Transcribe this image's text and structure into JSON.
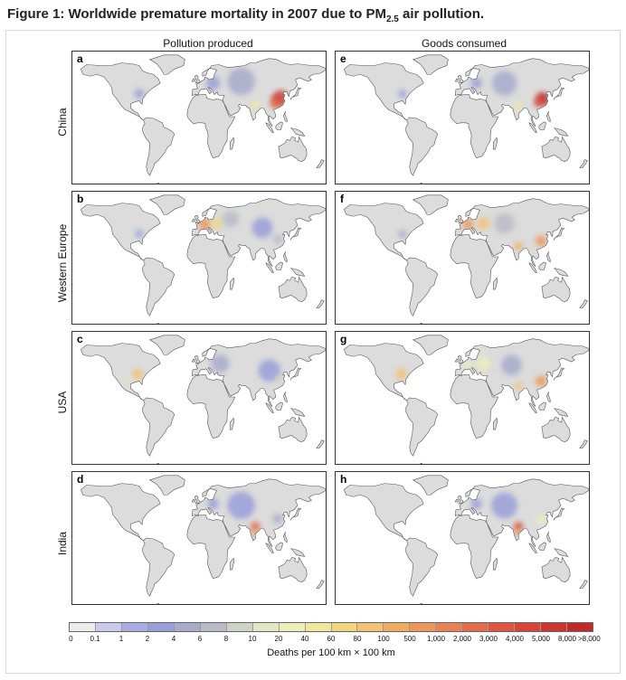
{
  "figure": {
    "title_main": "Figure 1: Worldwide premature mortality in 2007 due to PM",
    "title_sub": "2.5",
    "title_end": " air pollution."
  },
  "columns": [
    "Pollution produced",
    "Goods consumed"
  ],
  "rows": [
    "China",
    "Western Europe",
    "USA",
    "India"
  ],
  "panels": [
    {
      "letter": "a",
      "row": "China",
      "column": "Pollution produced"
    },
    {
      "letter": "b",
      "row": "Western Europe",
      "column": "Pollution produced"
    },
    {
      "letter": "c",
      "row": "USA",
      "column": "Pollution produced"
    },
    {
      "letter": "d",
      "row": "India",
      "column": "Pollution produced"
    },
    {
      "letter": "e",
      "row": "China",
      "column": "Goods consumed"
    },
    {
      "letter": "f",
      "row": "Western Europe",
      "column": "Goods consumed"
    },
    {
      "letter": "g",
      "row": "USA",
      "column": "Goods consumed"
    },
    {
      "letter": "h",
      "row": "India",
      "column": "Goods consumed"
    }
  ],
  "legend": {
    "title": "Deaths per 100 km × 100 km",
    "ticks": [
      "0",
      "0.1",
      "1",
      "2",
      "4",
      "6",
      "8",
      "10",
      "20",
      "40",
      "60",
      "80",
      "100",
      "500",
      "1,000",
      "2,000",
      "3,000",
      "4,000",
      "5,000",
      "8,000",
      ">8,000"
    ],
    "colors": [
      "#ececec",
      "#c9cbe9",
      "#a9ade3",
      "#9a9fd9",
      "#a7abcc",
      "#b9bcc6",
      "#cfd2c6",
      "#e2e6c3",
      "#eeeeba",
      "#f1e79a",
      "#f2d67e",
      "#f1c272",
      "#efad62",
      "#ec985a",
      "#e98252",
      "#e46b48",
      "#dd5640",
      "#d64538",
      "#cd3630",
      "#c02a28"
    ]
  },
  "hotspots": {
    "a": [
      {
        "lon": 114,
        "lat": 32,
        "lvl": 18,
        "r": 22
      },
      {
        "lon": 108,
        "lat": 27,
        "lvl": 15,
        "r": 14
      },
      {
        "lon": 118,
        "lat": 38,
        "lvl": 16,
        "r": 10
      },
      {
        "lon": 80,
        "lat": 25,
        "lvl": 9,
        "r": 12
      },
      {
        "lon": 60,
        "lat": 52,
        "lvl": 4,
        "r": 40
      },
      {
        "lon": 20,
        "lat": 50,
        "lvl": 3,
        "r": 20
      },
      {
        "lon": -85,
        "lat": 38,
        "lvl": 3,
        "r": 14
      }
    ],
    "b": [
      {
        "lon": 8,
        "lat": 49,
        "lvl": 13,
        "r": 18
      },
      {
        "lon": 25,
        "lat": 50,
        "lvl": 10,
        "r": 16
      },
      {
        "lon": 45,
        "lat": 55,
        "lvl": 5,
        "r": 24
      },
      {
        "lon": 90,
        "lat": 45,
        "lvl": 3,
        "r": 30
      },
      {
        "lon": 112,
        "lat": 32,
        "lvl": 5,
        "r": 14
      },
      {
        "lon": -85,
        "lat": 38,
        "lvl": 3,
        "r": 12
      }
    ],
    "c": [
      {
        "lon": -87,
        "lat": 38,
        "lvl": 11,
        "r": 16
      },
      {
        "lon": -100,
        "lat": 33,
        "lvl": 7,
        "r": 10
      },
      {
        "lon": 30,
        "lat": 50,
        "lvl": 4,
        "r": 26
      },
      {
        "lon": 100,
        "lat": 42,
        "lvl": 3,
        "r": 32
      },
      {
        "lon": 114,
        "lat": 32,
        "lvl": 6,
        "r": 12
      }
    ],
    "d": [
      {
        "lon": 80,
        "lat": 24,
        "lvl": 15,
        "r": 14
      },
      {
        "lon": 78,
        "lat": 17,
        "lvl": 13,
        "r": 10
      },
      {
        "lon": 60,
        "lat": 48,
        "lvl": 3,
        "r": 40
      },
      {
        "lon": 112,
        "lat": 33,
        "lvl": 4,
        "r": 14
      },
      {
        "lon": 20,
        "lat": 50,
        "lvl": 3,
        "r": 16
      }
    ],
    "e": [
      {
        "lon": 114,
        "lat": 32,
        "lvl": 19,
        "r": 20
      },
      {
        "lon": 108,
        "lat": 28,
        "lvl": 16,
        "r": 12
      },
      {
        "lon": 80,
        "lat": 24,
        "lvl": 9,
        "r": 12
      },
      {
        "lon": 60,
        "lat": 50,
        "lvl": 4,
        "r": 36
      },
      {
        "lon": 20,
        "lat": 50,
        "lvl": 3,
        "r": 16
      },
      {
        "lon": -85,
        "lat": 38,
        "lvl": 3,
        "r": 12
      }
    ],
    "f": [
      {
        "lon": 8,
        "lat": 49,
        "lvl": 13,
        "r": 16
      },
      {
        "lon": 30,
        "lat": 50,
        "lvl": 11,
        "r": 18
      },
      {
        "lon": 80,
        "lat": 24,
        "lvl": 12,
        "r": 12
      },
      {
        "lon": 112,
        "lat": 30,
        "lvl": 13,
        "r": 16
      },
      {
        "lon": 60,
        "lat": 50,
        "lvl": 5,
        "r": 30
      },
      {
        "lon": -85,
        "lat": 38,
        "lvl": 4,
        "r": 12
      }
    ],
    "g": [
      {
        "lon": -87,
        "lat": 38,
        "lvl": 11,
        "r": 16
      },
      {
        "lon": 112,
        "lat": 30,
        "lvl": 13,
        "r": 16
      },
      {
        "lon": 80,
        "lat": 24,
        "lvl": 11,
        "r": 12
      },
      {
        "lon": 30,
        "lat": 50,
        "lvl": 8,
        "r": 20
      },
      {
        "lon": 8,
        "lat": 48,
        "lvl": 8,
        "r": 12
      },
      {
        "lon": 70,
        "lat": 48,
        "lvl": 4,
        "r": 30
      }
    ],
    "h": [
      {
        "lon": 80,
        "lat": 24,
        "lvl": 16,
        "r": 14
      },
      {
        "lon": 78,
        "lat": 17,
        "lvl": 13,
        "r": 10
      },
      {
        "lon": 60,
        "lat": 48,
        "lvl": 3,
        "r": 38
      },
      {
        "lon": 112,
        "lat": 32,
        "lvl": 8,
        "r": 14
      },
      {
        "lon": 20,
        "lat": 50,
        "lvl": 3,
        "r": 16
      }
    ]
  }
}
